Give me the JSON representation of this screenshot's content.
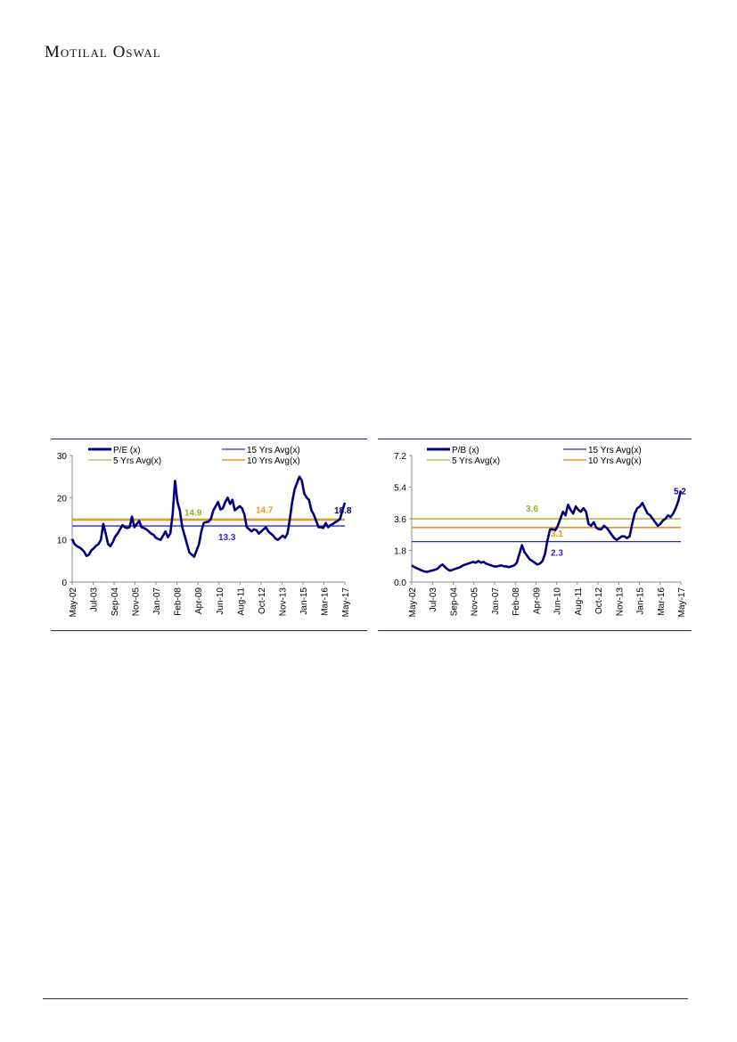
{
  "header": {
    "logo_text": "Motilal Oswal"
  },
  "colors": {
    "series": "#00007f",
    "avg15": "#2a2acc",
    "avg5": "#a8b83a",
    "avg10": "#f0931e",
    "label15": "#2a2acc",
    "label5": "#9aab2a",
    "label10": "#f0931e",
    "latest": "#00007f"
  },
  "chart_data": [
    {
      "type": "line",
      "ylim": [
        0,
        30
      ],
      "yticks": [
        "0",
        "10",
        "20",
        "30"
      ],
      "xticks": [
        "May-02",
        "Jul-03",
        "Sep-04",
        "Nov-05",
        "Jan-07",
        "Feb-08",
        "Apr-09",
        "Jun-10",
        "Aug-11",
        "Oct-12",
        "Nov-13",
        "Jan-15",
        "Mar-16",
        "May-17"
      ],
      "legend": [
        "P/E (x)",
        "15 Yrs Avg(x)",
        "5 Yrs Avg(x)",
        "10 Yrs Avg(x)"
      ],
      "series": [
        {
          "name": "P/E (x)",
          "values": [
            10.2,
            9.0,
            8.5,
            8.2,
            7.8,
            7.2,
            6.2,
            6.5,
            7.5,
            8.0,
            8.6,
            9.0,
            10.0,
            13.8,
            11.5,
            9.0,
            8.5,
            9.5,
            10.8,
            11.5,
            12.5,
            13.5,
            13.0,
            12.8,
            13.0,
            15.5,
            13.0,
            13.8,
            14.5,
            13.0,
            12.8,
            12.5,
            12.0,
            11.5,
            11.2,
            10.5,
            10.2,
            10.0,
            11.0,
            12.0,
            10.6,
            11.5,
            16.0,
            24.0,
            19.0,
            17.0,
            13.0,
            11.0,
            9.0,
            7.0,
            6.5,
            6.0,
            7.5,
            9.0,
            12.0,
            14.0,
            14.2,
            14.3,
            15.0,
            17.0,
            18.0,
            19.0,
            17.2,
            17.5,
            19.0,
            20.0,
            18.5,
            19.5,
            17.0,
            17.5,
            18.0,
            17.5,
            16.0,
            13.0,
            12.5,
            12.0,
            12.5,
            12.3,
            11.5,
            12.0,
            12.5,
            13.0,
            12.0,
            11.5,
            11.0,
            10.3,
            10.0,
            10.5,
            11.0,
            10.5,
            11.5,
            15.0,
            19.0,
            22.0,
            23.5,
            25.0,
            24.0,
            21.0,
            20.0,
            19.5,
            17.0,
            16.0,
            14.5,
            13.0,
            13.0,
            12.8,
            14.0,
            13.0,
            13.5,
            13.8,
            14.2,
            14.5,
            15.0,
            17.0,
            18.8
          ]
        }
      ],
      "reference_lines": [
        {
          "name": "15 Yrs Avg(x)",
          "value": 13.3,
          "label": "13.3"
        },
        {
          "name": "5 Yrs Avg(x)",
          "value": 14.9,
          "label": "14.9"
        },
        {
          "name": "10 Yrs Avg(x)",
          "value": 14.7,
          "label": "14.7"
        }
      ],
      "latest_label": "18.8"
    },
    {
      "type": "line",
      "ylim": [
        0,
        7.2
      ],
      "yticks": [
        "0.0",
        "1.8",
        "3.6",
        "5.4",
        "7.2"
      ],
      "xticks": [
        "May-02",
        "Jul-03",
        "Sep-04",
        "Nov-05",
        "Jan-07",
        "Feb-08",
        "Apr-09",
        "Jun-10",
        "Aug-11",
        "Oct-12",
        "Nov-13",
        "Jan-15",
        "Mar-16",
        "May-17"
      ],
      "legend": [
        "P/B (x)",
        "15 Yrs Avg(x)",
        "5 Yrs Avg(x)",
        "10 Yrs Avg(x)"
      ],
      "series": [
        {
          "name": "P/B (x)",
          "values": [
            0.95,
            0.85,
            0.78,
            0.72,
            0.65,
            0.6,
            0.58,
            0.62,
            0.66,
            0.7,
            0.75,
            0.9,
            1.0,
            0.85,
            0.72,
            0.65,
            0.7,
            0.75,
            0.8,
            0.85,
            0.95,
            1.0,
            1.05,
            1.1,
            1.15,
            1.1,
            1.2,
            1.1,
            1.15,
            1.05,
            1.0,
            0.95,
            0.9,
            0.88,
            0.92,
            0.95,
            0.9,
            0.88,
            0.85,
            0.9,
            0.95,
            1.1,
            1.6,
            2.1,
            1.7,
            1.5,
            1.3,
            1.2,
            1.1,
            1.0,
            1.05,
            1.2,
            1.6,
            2.4,
            3.0,
            3.0,
            2.95,
            3.2,
            3.6,
            4.0,
            3.8,
            4.4,
            4.1,
            3.9,
            4.3,
            4.1,
            4.0,
            4.2,
            4.0,
            3.3,
            3.2,
            3.4,
            3.1,
            3.0,
            3.0,
            3.2,
            3.1,
            2.9,
            2.7,
            2.5,
            2.4,
            2.5,
            2.6,
            2.6,
            2.5,
            2.6,
            3.3,
            3.9,
            4.2,
            4.3,
            4.5,
            4.2,
            3.9,
            3.8,
            3.6,
            3.4,
            3.2,
            3.3,
            3.5,
            3.6,
            3.8,
            3.7,
            3.9,
            4.2,
            4.6,
            5.2
          ]
        }
      ],
      "reference_lines": [
        {
          "name": "15 Yrs Avg(x)",
          "value": 2.3,
          "label": "2.3"
        },
        {
          "name": "5 Yrs Avg(x)",
          "value": 3.6,
          "label": "3.6"
        },
        {
          "name": "10 Yrs Avg(x)",
          "value": 3.1,
          "label": "3.1"
        }
      ],
      "latest_label": "5.2"
    }
  ]
}
